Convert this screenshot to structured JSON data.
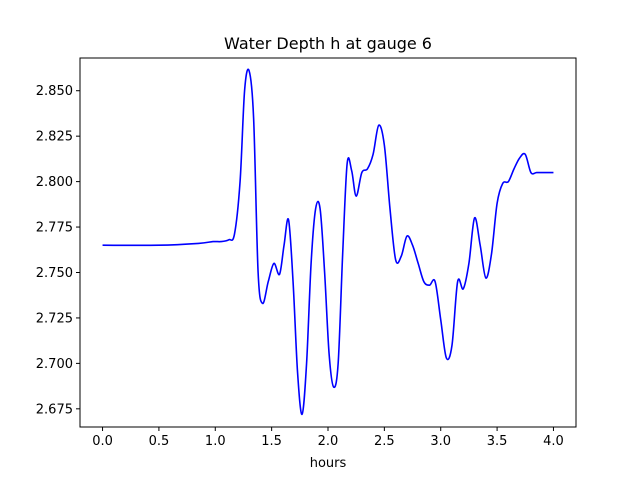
{
  "chart_data": {
    "type": "line",
    "title": "Water Depth h at gauge 6",
    "xlabel": "hours",
    "ylabel": "",
    "xlim": [
      -0.2,
      4.2
    ],
    "ylim": [
      2.665,
      2.868
    ],
    "xticks": [
      0.0,
      0.5,
      1.0,
      1.5,
      2.0,
      2.5,
      3.0,
      3.5,
      4.0
    ],
    "xtick_labels": [
      "0.0",
      "0.5",
      "1.0",
      "1.5",
      "2.0",
      "2.5",
      "3.0",
      "3.5",
      "4.0"
    ],
    "yticks": [
      2.675,
      2.7,
      2.725,
      2.75,
      2.775,
      2.8,
      2.825,
      2.85
    ],
    "ytick_labels": [
      "2.675",
      "2.700",
      "2.725",
      "2.750",
      "2.775",
      "2.800",
      "2.825",
      "2.850"
    ],
    "grid": false,
    "legend": "none",
    "series": [
      {
        "color": "#0000ff",
        "x": [
          0.0,
          0.5,
          0.85,
          0.98,
          1.05,
          1.12,
          1.17,
          1.22,
          1.26,
          1.3,
          1.34,
          1.38,
          1.42,
          1.47,
          1.52,
          1.57,
          1.61,
          1.65,
          1.69,
          1.73,
          1.77,
          1.81,
          1.85,
          1.89,
          1.93,
          1.97,
          2.01,
          2.05,
          2.09,
          2.13,
          2.17,
          2.21,
          2.25,
          2.3,
          2.35,
          2.4,
          2.45,
          2.5,
          2.55,
          2.6,
          2.65,
          2.7,
          2.75,
          2.8,
          2.85,
          2.9,
          2.95,
          3.0,
          3.05,
          3.1,
          3.15,
          3.2,
          3.25,
          3.3,
          3.35,
          3.4,
          3.45,
          3.5,
          3.55,
          3.6,
          3.65,
          3.7,
          3.75,
          3.8,
          3.85,
          3.9,
          3.95,
          4.0
        ],
        "y": [
          2.765,
          2.765,
          2.766,
          2.767,
          2.767,
          2.768,
          2.771,
          2.8,
          2.85,
          2.861,
          2.835,
          2.75,
          2.733,
          2.745,
          2.755,
          2.749,
          2.765,
          2.779,
          2.745,
          2.695,
          2.672,
          2.7,
          2.755,
          2.785,
          2.785,
          2.75,
          2.705,
          2.687,
          2.7,
          2.76,
          2.81,
          2.806,
          2.792,
          2.805,
          2.807,
          2.815,
          2.831,
          2.82,
          2.785,
          2.757,
          2.759,
          2.77,
          2.765,
          2.755,
          2.745,
          2.743,
          2.745,
          2.724,
          2.703,
          2.71,
          2.745,
          2.741,
          2.755,
          2.78,
          2.765,
          2.747,
          2.76,
          2.788,
          2.799,
          2.8,
          2.807,
          2.813,
          2.815,
          2.805,
          2.805,
          2.805,
          2.805,
          2.805
        ]
      }
    ]
  }
}
